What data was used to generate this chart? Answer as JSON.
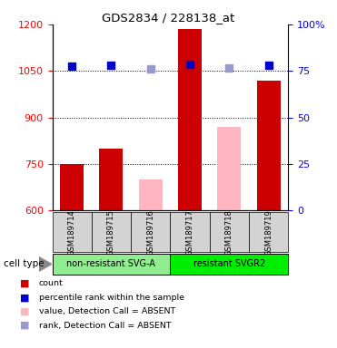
{
  "title": "GDS2834 / 228138_at",
  "samples": [
    "GSM189714",
    "GSM189715",
    "GSM189716",
    "GSM189717",
    "GSM189718",
    "GSM189719"
  ],
  "groups": [
    {
      "name": "non-resistant SVG-A",
      "color": "#90EE90",
      "samples": [
        0,
        1,
        2
      ]
    },
    {
      "name": "resistant SVGR2",
      "color": "#00EE00",
      "samples": [
        3,
        4,
        5
      ]
    }
  ],
  "bar_values": [
    750,
    800,
    null,
    1185,
    null,
    1020
  ],
  "bar_present_color": "#CC0000",
  "absent_bar_values": [
    null,
    null,
    700,
    null,
    870,
    null
  ],
  "absent_bar_color": "#FFB6C1",
  "percentile_present": [
    1065,
    1068,
    null,
    1070,
    null,
    1068
  ],
  "percentile_absent": [
    null,
    null,
    1058,
    null,
    1060,
    null
  ],
  "percentile_present_color": "#0000CC",
  "percentile_absent_color": "#9999CC",
  "ylim_left": [
    600,
    1200
  ],
  "ylim_right": [
    0,
    100
  ],
  "yticks_left": [
    600,
    750,
    900,
    1050,
    1200
  ],
  "yticks_right": [
    0,
    25,
    50,
    75,
    100
  ],
  "ytick_right_labels": [
    "0",
    "25",
    "50",
    "75",
    "100%"
  ],
  "grid_values": [
    750,
    900,
    1050
  ],
  "cell_type_label": "cell type",
  "legend_items": [
    {
      "label": "count",
      "color": "#CC0000"
    },
    {
      "label": "percentile rank within the sample",
      "color": "#0000CC"
    },
    {
      "label": "value, Detection Call = ABSENT",
      "color": "#FFB6C1"
    },
    {
      "label": "rank, Detection Call = ABSENT",
      "color": "#9999CC"
    }
  ],
  "bar_width": 0.6,
  "marker_size": 6,
  "sample_box_color": "#D3D3D3",
  "fig_width": 3.71,
  "fig_height": 3.84,
  "dpi": 100
}
